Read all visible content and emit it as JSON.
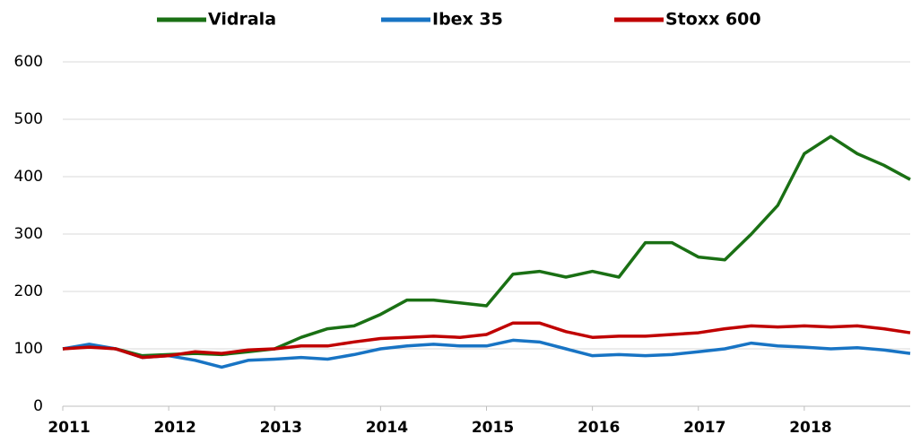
{
  "chart_data": {
    "type": "line",
    "x": [
      2011,
      2011.25,
      2011.5,
      2011.75,
      2012,
      2012.25,
      2012.5,
      2012.75,
      2013,
      2013.25,
      2013.5,
      2013.75,
      2014,
      2014.25,
      2014.5,
      2014.75,
      2015,
      2015.25,
      2015.5,
      2015.75,
      2016,
      2016.25,
      2016.5,
      2016.75,
      2017,
      2017.25,
      2017.5,
      2017.75,
      2018,
      2018.25,
      2018.5,
      2018.75,
      2019
    ],
    "series": [
      {
        "name": "Vidrala",
        "color": "#1a7014",
        "values": [
          100,
          105,
          100,
          88,
          90,
          92,
          90,
          95,
          100,
          120,
          135,
          140,
          160,
          185,
          185,
          180,
          175,
          230,
          235,
          225,
          235,
          225,
          285,
          285,
          260,
          255,
          300,
          350,
          440,
          470,
          440,
          420,
          395
        ]
      },
      {
        "name": "Ibex 35",
        "color": "#1874c4",
        "values": [
          100,
          108,
          100,
          85,
          88,
          80,
          68,
          80,
          82,
          85,
          82,
          90,
          100,
          105,
          108,
          105,
          105,
          115,
          112,
          100,
          88,
          90,
          88,
          90,
          95,
          100,
          110,
          105,
          103,
          100,
          102,
          98,
          92
        ]
      },
      {
        "name": "Stoxx 600",
        "color": "#c00000",
        "values": [
          100,
          103,
          100,
          85,
          88,
          95,
          92,
          98,
          100,
          105,
          105,
          112,
          118,
          120,
          122,
          120,
          125,
          145,
          145,
          130,
          120,
          122,
          122,
          125,
          128,
          135,
          140,
          138,
          140,
          138,
          140,
          135,
          128
        ]
      }
    ],
    "xlim": [
      2011,
      2019
    ],
    "xticks": [
      2011,
      2012,
      2013,
      2014,
      2015,
      2016,
      2017,
      2018
    ],
    "ylim": [
      0,
      600
    ],
    "yticks": [
      0,
      100,
      200,
      300,
      400,
      500,
      600
    ],
    "grid": true,
    "legend": "top"
  }
}
